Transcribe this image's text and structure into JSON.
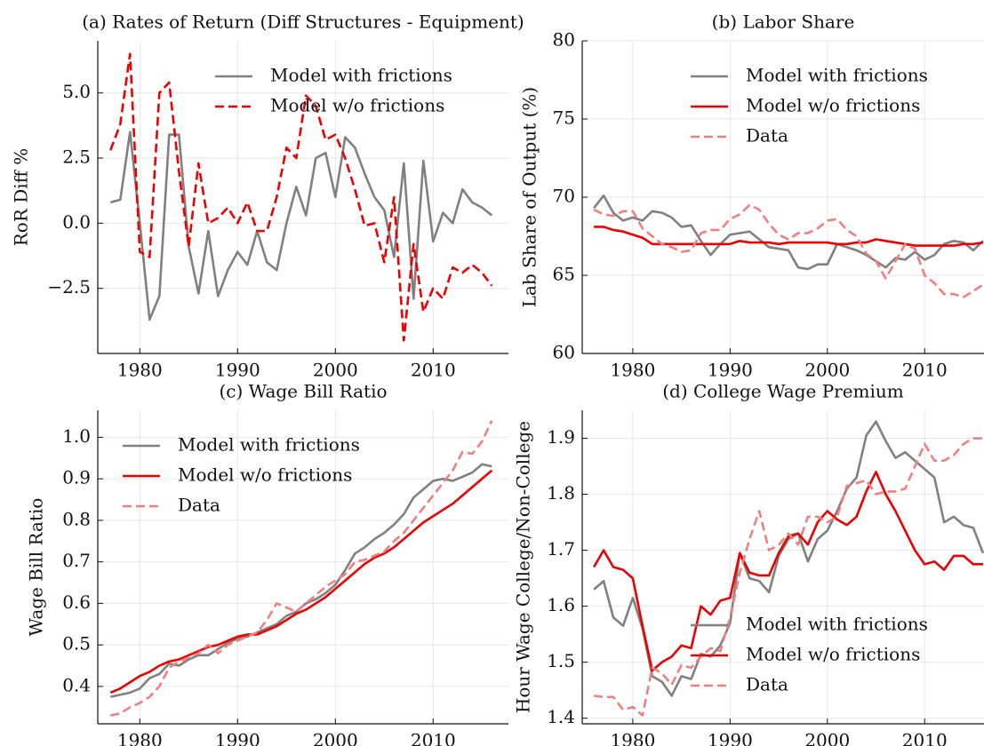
{
  "chart_data": [
    {
      "type": "line",
      "title": "(a) Rates of Return (Diff Structures - Equipment)",
      "ylabel": "RoR Diff %",
      "x": [
        1977,
        1978,
        1979,
        1980,
        1981,
        1982,
        1983,
        1984,
        1985,
        1986,
        1987,
        1988,
        1989,
        1990,
        1991,
        1992,
        1993,
        1994,
        1995,
        1996,
        1997,
        1998,
        1999,
        2000,
        2001,
        2002,
        2003,
        2004,
        2005,
        2006,
        2007,
        2008,
        2009,
        2010,
        2011,
        2012,
        2013,
        2014,
        2015,
        2016
      ],
      "series": [
        {
          "name": "Model with frictions",
          "color": "#808080",
          "linestyle": "solid",
          "values": [
            0.8,
            0.9,
            3.5,
            0.0,
            -3.7,
            -2.8,
            3.4,
            3.4,
            -0.9,
            -2.7,
            -0.3,
            -2.8,
            -1.8,
            -1.1,
            -1.6,
            -0.3,
            -1.5,
            -1.8,
            0.0,
            1.4,
            0.3,
            2.5,
            2.7,
            1.0,
            3.3,
            2.9,
            1.9,
            1.0,
            0.5,
            -1.3,
            2.3,
            -2.9,
            2.4,
            -0.7,
            0.4,
            0.0,
            1.3,
            0.8,
            0.6,
            0.3
          ]
        },
        {
          "name": "Model w/o frictions",
          "color": "#ee0000",
          "linestyle": "dashed",
          "values": [
            2.8,
            3.8,
            6.5,
            -1.1,
            -1.3,
            5.0,
            5.4,
            2.0,
            -0.9,
            2.3,
            0.0,
            0.2,
            0.6,
            0.0,
            0.8,
            -0.3,
            -0.3,
            1.0,
            2.9,
            2.5,
            4.9,
            4.5,
            3.2,
            3.4,
            2.5,
            1.3,
            -0.1,
            0.0,
            -1.5,
            1.0,
            -4.5,
            -0.8,
            -3.4,
            -2.5,
            -2.9,
            -1.7,
            -1.9,
            -1.6,
            -1.9,
            -2.4
          ]
        }
      ],
      "xlim": [
        1975.7,
        2017.7
      ],
      "xticks": [
        1980,
        1990,
        2000,
        2010
      ],
      "ylim": [
        -5.0,
        7.0
      ],
      "yticks": [
        {
          "value": -2.5,
          "label": "−2.5"
        },
        {
          "value": 0,
          "label": "0.0"
        },
        2.5,
        {
          "value": 5,
          "label": "5.0"
        }
      ],
      "grid": true,
      "legend": "upper right"
    },
    {
      "type": "line",
      "title": "(b) Labor Share",
      "ylabel": "Lab Share of Output (%)",
      "x": [
        1976,
        1977,
        1978,
        1979,
        1980,
        1981,
        1982,
        1983,
        1984,
        1985,
        1986,
        1987,
        1988,
        1989,
        1990,
        1991,
        1992,
        1993,
        1994,
        1995,
        1996,
        1997,
        1998,
        1999,
        2000,
        2001,
        2002,
        2003,
        2004,
        2005,
        2006,
        2007,
        2008,
        2009,
        2010,
        2011,
        2012,
        2013,
        2014,
        2015,
        2016
      ],
      "series": [
        {
          "name": "Model with frictions",
          "color": "#808080",
          "linestyle": "solid",
          "values": [
            69.3,
            70.1,
            69.0,
            68.5,
            68.7,
            68.5,
            69.1,
            69.0,
            68.7,
            68.1,
            68.2,
            67.2,
            66.3,
            67.0,
            67.6,
            67.7,
            67.8,
            67.3,
            66.8,
            66.7,
            66.6,
            65.5,
            65.4,
            65.7,
            65.7,
            67.0,
            66.8,
            66.6,
            66.3,
            65.9,
            65.5,
            66.1,
            66.0,
            66.5,
            66.0,
            66.3,
            67.0,
            67.2,
            67.1,
            66.6,
            67.2
          ]
        },
        {
          "name": "Model w/o frictions",
          "color": "#ee0000",
          "linestyle": "solid",
          "values": [
            68.1,
            68.1,
            67.9,
            67.8,
            67.6,
            67.4,
            67.0,
            67.0,
            67.0,
            67.0,
            67.0,
            67.0,
            67.0,
            67.0,
            67.0,
            67.2,
            67.1,
            67.1,
            67.1,
            67.0,
            67.1,
            67.1,
            67.1,
            67.1,
            67.1,
            67.0,
            67.0,
            67.1,
            67.1,
            67.3,
            67.2,
            67.1,
            67.0,
            66.9,
            66.9,
            66.9,
            66.9,
            66.9,
            67.0,
            67.0,
            67.1
          ]
        },
        {
          "name": "Data",
          "color": "#f08080",
          "linestyle": "dashed",
          "values": [
            69.2,
            68.9,
            68.8,
            69.1,
            69.1,
            68.0,
            67.5,
            67.0,
            66.8,
            66.5,
            66.6,
            67.7,
            67.9,
            67.9,
            68.6,
            68.9,
            69.5,
            69.2,
            68.3,
            67.6,
            67.3,
            67.7,
            67.7,
            68.0,
            68.5,
            68.6,
            67.9,
            67.5,
            66.4,
            65.9,
            64.8,
            65.9,
            67.0,
            66.7,
            65.0,
            64.5,
            63.8,
            63.8,
            63.6,
            64.0,
            64.4
          ]
        }
      ],
      "xlim": [
        1974.8,
        2016.1
      ],
      "xticks": [
        1980,
        1990,
        2000,
        2010
      ],
      "ylim": [
        60,
        80
      ],
      "yticks": [
        60,
        65,
        70,
        75,
        80
      ],
      "grid": true,
      "legend": "upper right"
    },
    {
      "type": "line",
      "title": "(c) Wage Bill Ratio",
      "ylabel": "Wage Bill Ratio",
      "x": [
        1977,
        1978,
        1979,
        1980,
        1981,
        1982,
        1983,
        1984,
        1985,
        1986,
        1987,
        1988,
        1989,
        1990,
        1991,
        1992,
        1993,
        1994,
        1995,
        1996,
        1997,
        1998,
        1999,
        2000,
        2001,
        2002,
        2003,
        2004,
        2005,
        2006,
        2007,
        2008,
        2009,
        2010,
        2011,
        2012,
        2013,
        2014,
        2015,
        2016
      ],
      "series": [
        {
          "name": "Model with frictions",
          "color": "#808080",
          "linestyle": "solid",
          "values": [
            0.375,
            0.38,
            0.385,
            0.395,
            0.42,
            0.43,
            0.455,
            0.45,
            0.465,
            0.475,
            0.475,
            0.49,
            0.505,
            0.515,
            0.52,
            0.53,
            0.54,
            0.55,
            0.57,
            0.58,
            0.6,
            0.61,
            0.625,
            0.645,
            0.68,
            0.72,
            0.735,
            0.755,
            0.77,
            0.79,
            0.815,
            0.855,
            0.875,
            0.895,
            0.9,
            0.895,
            0.905,
            0.915,
            0.935,
            0.93
          ]
        },
        {
          "name": "Model w/o frictions",
          "color": "#ee0000",
          "linestyle": "solid",
          "values": [
            0.385,
            0.395,
            0.41,
            0.425,
            0.435,
            0.45,
            0.46,
            0.465,
            0.475,
            0.485,
            0.495,
            0.5,
            0.51,
            0.52,
            0.525,
            0.525,
            0.535,
            0.545,
            0.56,
            0.575,
            0.585,
            0.6,
            0.615,
            0.635,
            0.655,
            0.675,
            0.695,
            0.71,
            0.72,
            0.735,
            0.755,
            0.775,
            0.795,
            0.81,
            0.825,
            0.84,
            0.86,
            0.88,
            0.9,
            0.92
          ]
        },
        {
          "name": "Data",
          "color": "#f08080",
          "linestyle": "dashed",
          "values": [
            0.33,
            0.335,
            0.35,
            0.36,
            0.375,
            0.4,
            0.445,
            0.46,
            0.47,
            0.48,
            0.5,
            0.48,
            0.5,
            0.51,
            0.52,
            0.53,
            0.56,
            0.6,
            0.59,
            0.58,
            0.6,
            0.62,
            0.64,
            0.655,
            0.67,
            0.7,
            0.705,
            0.715,
            0.725,
            0.75,
            0.77,
            0.8,
            0.83,
            0.86,
            0.89,
            0.92,
            0.965,
            0.96,
            0.99,
            1.04
          ]
        }
      ],
      "xlim": [
        1975.7,
        2017.7
      ],
      "xticks": [
        1980,
        1990,
        2000,
        2010
      ],
      "ylim": [
        0.31,
        1.065
      ],
      "yticks": [
        0.4,
        0.5,
        0.6,
        0.7,
        0.8,
        0.9,
        {
          "value": 1,
          "label": "1.0"
        }
      ],
      "grid": true,
      "legend": "upper left"
    },
    {
      "type": "line",
      "title": "(d) College Wage Premium",
      "ylabel": "Hour Wage College/Non-College",
      "x": [
        1976,
        1977,
        1978,
        1979,
        1980,
        1981,
        1982,
        1983,
        1984,
        1985,
        1986,
        1987,
        1988,
        1989,
        1990,
        1991,
        1992,
        1993,
        1994,
        1995,
        1996,
        1997,
        1998,
        1999,
        2000,
        2001,
        2002,
        2003,
        2004,
        2005,
        2006,
        2007,
        2008,
        2009,
        2010,
        2011,
        2012,
        2013,
        2014,
        2015,
        2016
      ],
      "series": [
        {
          "name": "Model with frictions",
          "color": "#808080",
          "linestyle": "solid",
          "values": [
            1.63,
            1.645,
            1.58,
            1.565,
            1.615,
            1.56,
            1.475,
            1.465,
            1.44,
            1.475,
            1.47,
            1.515,
            1.51,
            1.53,
            1.57,
            1.695,
            1.65,
            1.645,
            1.625,
            1.69,
            1.72,
            1.73,
            1.68,
            1.72,
            1.735,
            1.77,
            1.81,
            1.83,
            1.905,
            1.93,
            1.895,
            1.865,
            1.875,
            1.86,
            1.845,
            1.83,
            1.75,
            1.76,
            1.745,
            1.74,
            1.695
          ]
        },
        {
          "name": "Model w/o frictions",
          "color": "#ee0000",
          "linestyle": "solid",
          "values": [
            1.67,
            1.7,
            1.67,
            1.665,
            1.65,
            1.565,
            1.485,
            1.5,
            1.51,
            1.53,
            1.525,
            1.6,
            1.585,
            1.61,
            1.615,
            1.695,
            1.66,
            1.655,
            1.655,
            1.695,
            1.725,
            1.73,
            1.71,
            1.75,
            1.77,
            1.755,
            1.745,
            1.76,
            1.805,
            1.84,
            1.8,
            1.77,
            1.735,
            1.7,
            1.675,
            1.68,
            1.665,
            1.69,
            1.69,
            1.675,
            1.675
          ]
        },
        {
          "name": "Data",
          "color": "#f08080",
          "linestyle": "dashed",
          "values": [
            1.44,
            1.438,
            1.438,
            1.415,
            1.42,
            1.405,
            1.49,
            1.48,
            1.46,
            1.495,
            1.49,
            1.51,
            1.525,
            1.52,
            1.58,
            1.66,
            1.72,
            1.77,
            1.7,
            1.71,
            1.73,
            1.71,
            1.76,
            1.76,
            1.75,
            1.76,
            1.815,
            1.82,
            1.825,
            1.8,
            1.805,
            1.805,
            1.81,
            1.85,
            1.89,
            1.86,
            1.86,
            1.87,
            1.89,
            1.9,
            1.9
          ]
        }
      ],
      "xlim": [
        1974.8,
        2016.1
      ],
      "xticks": [
        1980,
        1990,
        2000,
        2010
      ],
      "ylim": [
        1.39,
        1.95
      ],
      "yticks": [
        1.4,
        1.5,
        1.6,
        1.7,
        1.8,
        1.9
      ],
      "grid": true,
      "legend": "lower right"
    }
  ]
}
